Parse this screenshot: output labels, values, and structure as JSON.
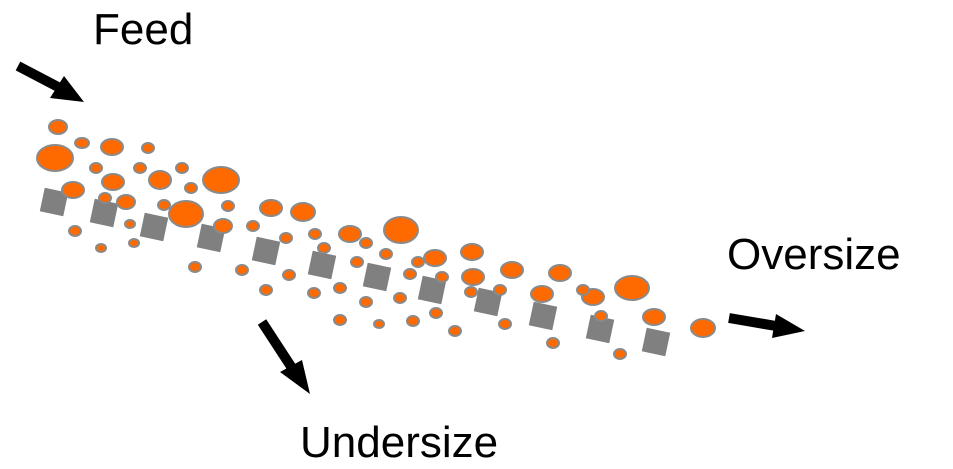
{
  "labels": {
    "feed": "Feed",
    "oversize": "Oversize",
    "undersize": "Undersize"
  },
  "colors": {
    "particle_fill": "#ff6a00",
    "particle_stroke": "#8a8a8a",
    "screen_square": "#808080",
    "arrow": "#000000"
  }
}
